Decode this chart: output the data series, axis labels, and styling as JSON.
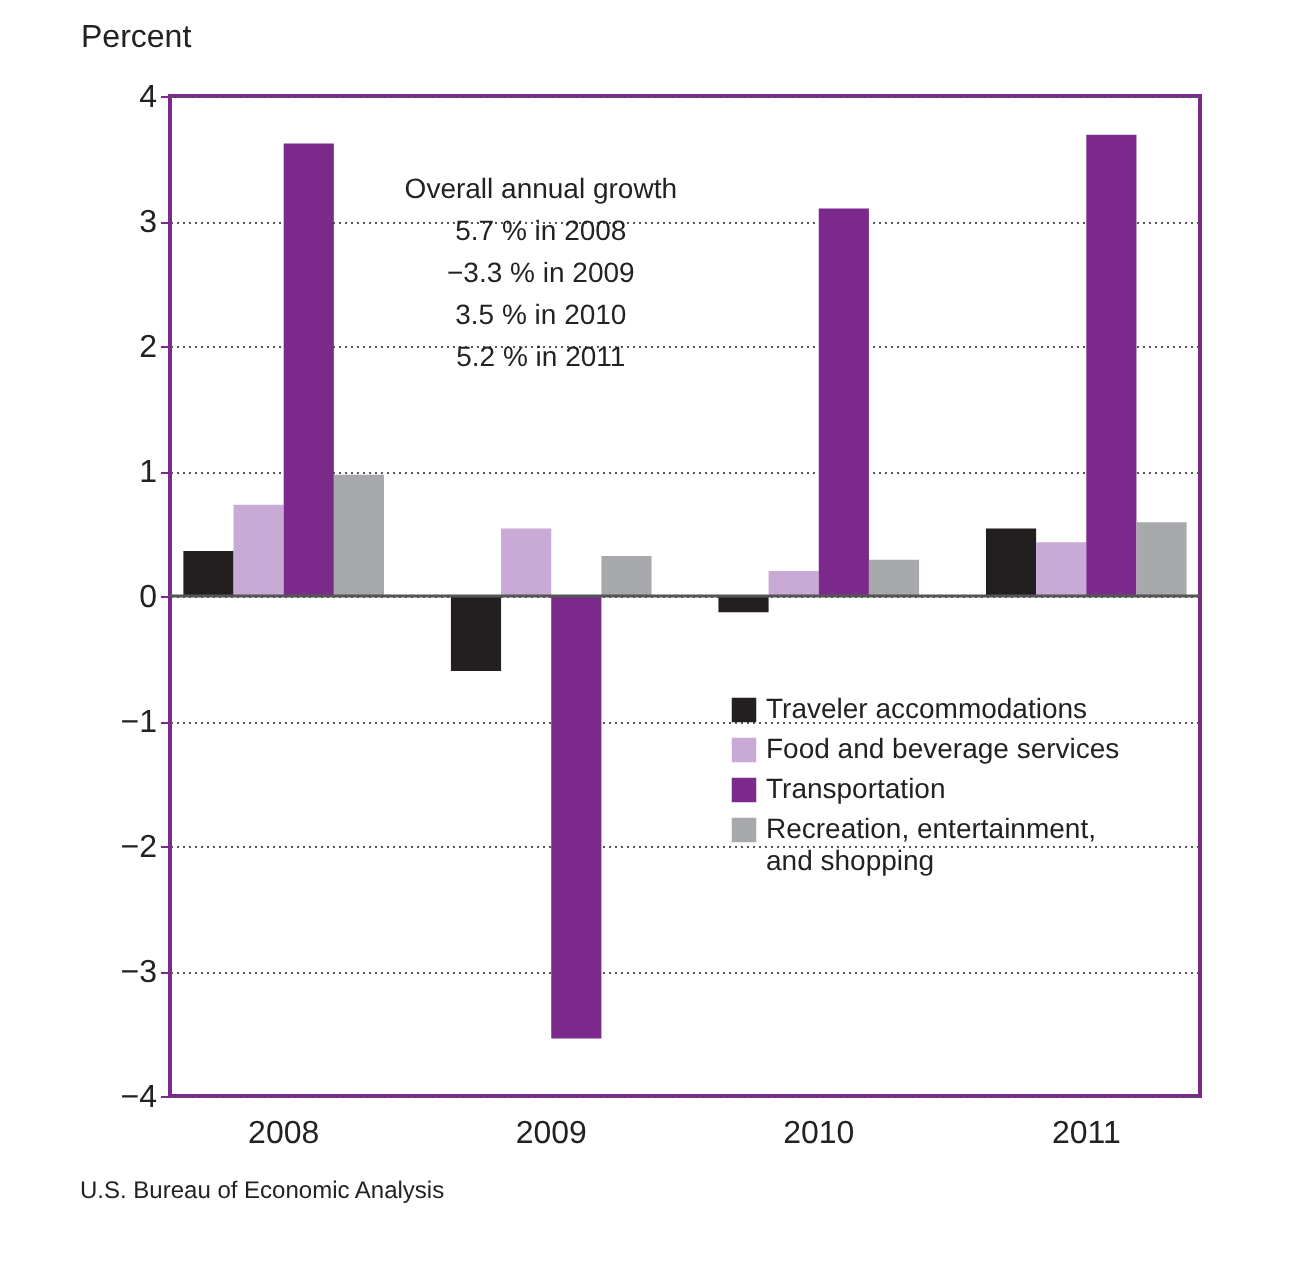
{
  "chart_data": {
    "type": "bar",
    "ylabel": "Percent",
    "categories": [
      "2008",
      "2009",
      "2010",
      "2011"
    ],
    "series": [
      {
        "name": "Traveler accommodations",
        "color": "#231f20",
        "values": [
          0.36,
          -0.6,
          -0.13,
          0.54
        ]
      },
      {
        "name": "Food and beverage services",
        "color": "#c9a9d6",
        "values": [
          0.73,
          0.54,
          0.2,
          0.43
        ]
      },
      {
        "name": "Transportation",
        "color": "#7b2a8c",
        "values": [
          3.62,
          -3.54,
          3.1,
          3.69
        ]
      },
      {
        "name": "Recreation, entertainment,\nand shopping",
        "color": "#a7a9ac",
        "values": [
          0.97,
          0.32,
          0.29,
          0.59
        ]
      }
    ],
    "ylim": [
      -4,
      4
    ],
    "yticks": [
      {
        "value": -4,
        "label": "−4"
      },
      {
        "value": -3,
        "label": "−3"
      },
      {
        "value": -2,
        "label": "−2"
      },
      {
        "value": -1,
        "label": "−1"
      },
      0,
      1,
      2,
      3,
      4
    ],
    "grid": "y",
    "legend": "bottom right",
    "ref_lines": [
      {
        "axis": "y",
        "value": 0,
        "color": "#555555",
        "line_style": "solid"
      }
    ],
    "annotations": [
      "Overall annual growth\n5.7 % in 2008\n−3.3 % in 2009\n3.5 % in 2010\n5.2 % in 2011",
      "U.S. Bureau of Economic Analysis"
    ]
  }
}
